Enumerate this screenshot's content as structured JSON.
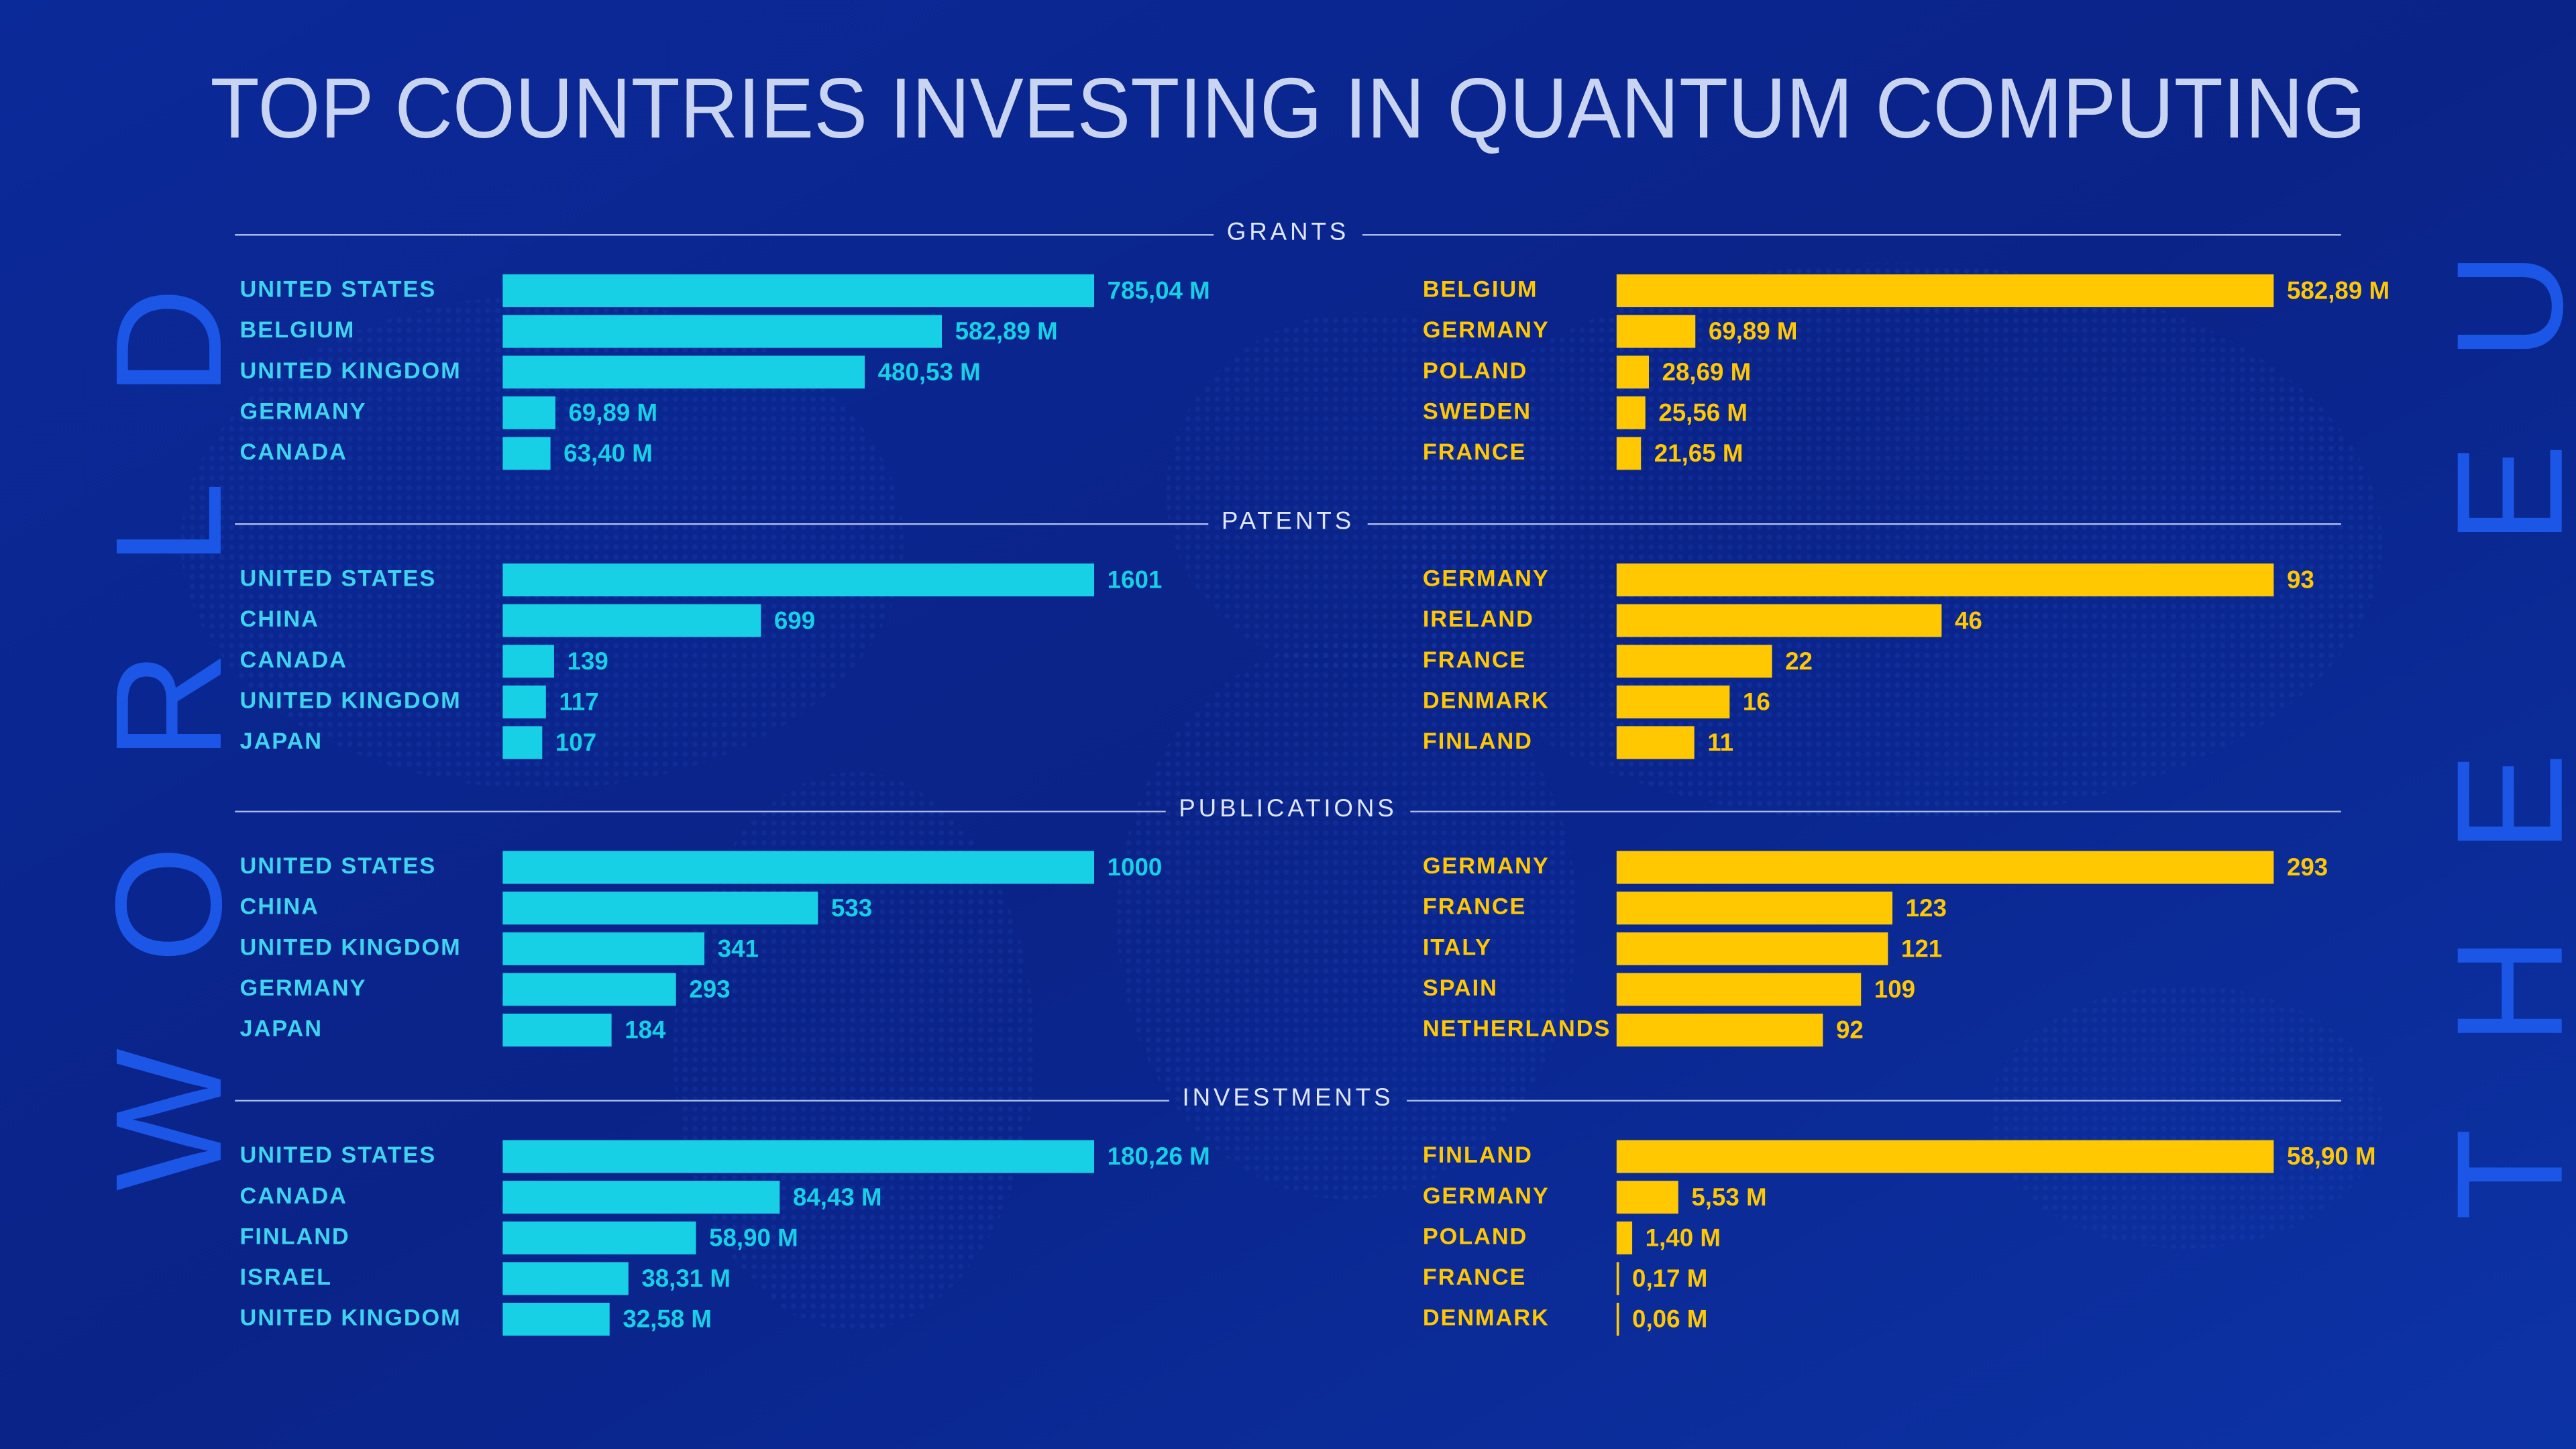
{
  "title": "TOP COUNTRIES INVESTING IN QUANTUM COMPUTING",
  "side_labels": {
    "world": "WORLD",
    "eu": "THE EU"
  },
  "chart_data": [
    {
      "type": "bar",
      "orientation": "horizontal",
      "title": "GRANTS",
      "panels": [
        {
          "color": "#17d0e6",
          "categories": [
            "UNITED STATES",
            "BELGIUM",
            "UNITED KINGDOM",
            "GERMANY",
            "CANADA"
          ],
          "values": [
            785.04,
            582.89,
            480.53,
            69.89,
            63.4
          ],
          "value_labels": [
            "785,04 M",
            "582,89 M",
            "480,53 M",
            "69,89 M",
            "63,40 M"
          ]
        },
        {
          "color": "#ffc800",
          "categories": [
            "BELGIUM",
            "GERMANY",
            "POLAND",
            "SWEDEN",
            "FRANCE"
          ],
          "values": [
            582.89,
            69.89,
            28.69,
            25.56,
            21.65
          ],
          "value_labels": [
            "582,89 M",
            "69,89 M",
            "28,69 M",
            "25,56 M",
            "21,65 M"
          ]
        }
      ]
    },
    {
      "type": "bar",
      "orientation": "horizontal",
      "title": "PATENTS",
      "panels": [
        {
          "color": "#17d0e6",
          "categories": [
            "UNITED STATES",
            "CHINA",
            "CANADA",
            "UNITED KINGDOM",
            "JAPAN"
          ],
          "values": [
            1601,
            699,
            139,
            117,
            107
          ]
        },
        {
          "color": "#ffc800",
          "categories": [
            "GERMANY",
            "IRELAND",
            "FRANCE",
            "DENMARK",
            "FINLAND"
          ],
          "values": [
            93,
            46,
            22,
            16,
            11
          ]
        }
      ]
    },
    {
      "type": "bar",
      "orientation": "horizontal",
      "title": "PUBLICATIONS",
      "panels": [
        {
          "color": "#17d0e6",
          "categories": [
            "UNITED STATES",
            "CHINA",
            "UNITED KINGDOM",
            "GERMANY",
            "JAPAN"
          ],
          "values": [
            1000,
            533,
            341,
            293,
            184
          ]
        },
        {
          "color": "#ffc800",
          "categories": [
            "GERMANY",
            "FRANCE",
            "ITALY",
            "SPAIN",
            "NETHERLANDS"
          ],
          "values": [
            293,
            123,
            121,
            109,
            92
          ]
        }
      ]
    },
    {
      "type": "bar",
      "orientation": "horizontal",
      "title": "INVESTMENTS",
      "panels": [
        {
          "color": "#17d0e6",
          "categories": [
            "UNITED STATES",
            "CANADA",
            "FINLAND",
            "ISRAEL",
            "UNITED KINGDOM"
          ],
          "values": [
            180.26,
            84.43,
            58.9,
            38.31,
            32.58
          ],
          "value_labels": [
            "180,26 M",
            "84,43 M",
            "58,90 M",
            "38,31 M",
            "32,58 M"
          ]
        },
        {
          "color": "#ffc800",
          "categories": [
            "FINLAND",
            "GERMANY",
            "POLAND",
            "FRANCE",
            "DENMARK"
          ],
          "values": [
            58.9,
            5.53,
            1.4,
            0.17,
            0.06
          ],
          "value_labels": [
            "58,90 M",
            "5,53 M",
            "1,40 M",
            "0,17 M",
            "0,06 M"
          ]
        }
      ]
    }
  ]
}
